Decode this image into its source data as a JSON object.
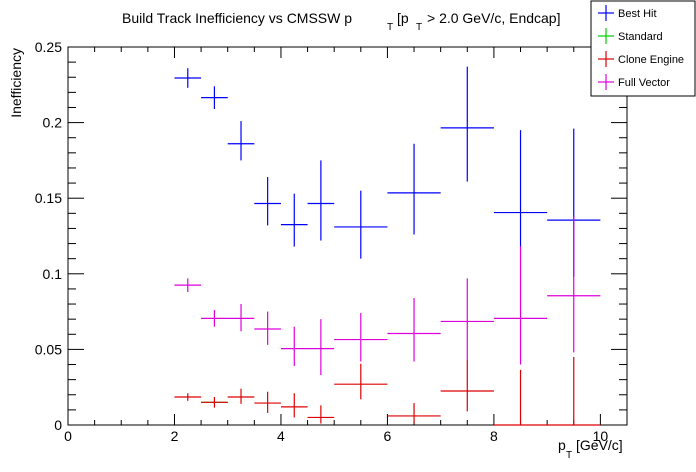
{
  "chart_data": {
    "type": "scatter",
    "title": "Build Track Inefficiency vs CMSSW p_{T} [p_{T} > 2.0 GeV/c, Endcap]",
    "title_parts": {
      "main": "Build Track Inefficiency vs CMSSW p",
      "sub1": "T",
      "bracket_open": "[p",
      "sub2": "T",
      "rest": "> 2.0 GeV/c, Endcap]"
    },
    "xlabel_parts": {
      "main": "p",
      "sub": "T",
      "unit": "[GeV/c]"
    },
    "ylabel": "Inefficiency",
    "xlim": [
      0,
      10.5
    ],
    "ylim": [
      0,
      0.25
    ],
    "x_ticks": [
      0,
      2,
      4,
      6,
      8,
      10
    ],
    "x_tick_labels": [
      "0",
      "2",
      "4",
      "6",
      "8",
      "10"
    ],
    "y_ticks": [
      0,
      0.05,
      0.1,
      0.15,
      0.2,
      0.25
    ],
    "y_tick_labels": [
      "0",
      "0.05",
      "0.1",
      "0.15",
      "0.2",
      "0.25"
    ],
    "grid": false,
    "legend_position": "top-right",
    "series": [
      {
        "name": "Best Hit",
        "color": "#0000ff",
        "points": [
          {
            "x": 2.25,
            "xerr": 0.25,
            "y": 0.2295,
            "yerr_lo": 0.0065,
            "yerr_hi": 0.0065
          },
          {
            "x": 2.75,
            "xerr": 0.25,
            "y": 0.2165,
            "yerr_lo": 0.0075,
            "yerr_hi": 0.0075
          },
          {
            "x": 3.25,
            "xerr": 0.25,
            "y": 0.186,
            "yerr_lo": 0.011,
            "yerr_hi": 0.015
          },
          {
            "x": 3.75,
            "xerr": 0.25,
            "y": 0.1465,
            "yerr_lo": 0.0145,
            "yerr_hi": 0.0175
          },
          {
            "x": 4.25,
            "xerr": 0.25,
            "y": 0.1325,
            "yerr_lo": 0.0145,
            "yerr_hi": 0.0205
          },
          {
            "x": 4.75,
            "xerr": 0.25,
            "y": 0.1465,
            "yerr_lo": 0.0245,
            "yerr_hi": 0.0285
          },
          {
            "x": 5.5,
            "xerr": 0.5,
            "y": 0.131,
            "yerr_lo": 0.021,
            "yerr_hi": 0.024
          },
          {
            "x": 6.5,
            "xerr": 0.5,
            "y": 0.1535,
            "yerr_lo": 0.0275,
            "yerr_hi": 0.0325
          },
          {
            "x": 7.5,
            "xerr": 0.5,
            "y": 0.1965,
            "yerr_lo": 0.0355,
            "yerr_hi": 0.0405
          },
          {
            "x": 8.5,
            "xerr": 0.5,
            "y": 0.1405,
            "yerr_lo": 0.0225,
            "yerr_hi": 0.0545
          },
          {
            "x": 9.5,
            "xerr": 0.5,
            "y": 0.1355,
            "yerr_lo": 0.0375,
            "yerr_hi": 0.0605
          }
        ]
      },
      {
        "name": "Standard",
        "color": "#00cc00",
        "points": [
          {
            "x": 2.75,
            "xerr": 0.25,
            "y": 0.015,
            "yerr_lo": 0.001,
            "yerr_hi": 0.001
          }
        ]
      },
      {
        "name": "Clone Engine",
        "color": "#dd0000",
        "points": [
          {
            "x": 2.25,
            "xerr": 0.25,
            "y": 0.0185,
            "yerr_lo": 0.0025,
            "yerr_hi": 0.0025
          },
          {
            "x": 2.75,
            "xerr": 0.25,
            "y": 0.015,
            "yerr_lo": 0.0035,
            "yerr_hi": 0.0035
          },
          {
            "x": 3.25,
            "xerr": 0.25,
            "y": 0.0185,
            "yerr_lo": 0.0045,
            "yerr_hi": 0.0055
          },
          {
            "x": 3.75,
            "xerr": 0.25,
            "y": 0.0145,
            "yerr_lo": 0.0065,
            "yerr_hi": 0.0075
          },
          {
            "x": 4.25,
            "xerr": 0.25,
            "y": 0.012,
            "yerr_lo": 0.007,
            "yerr_hi": 0.009
          },
          {
            "x": 4.75,
            "xerr": 0.25,
            "y": 0.005,
            "yerr_lo": 0.004,
            "yerr_hi": 0.008
          },
          {
            "x": 5.5,
            "xerr": 0.5,
            "y": 0.027,
            "yerr_lo": 0.01,
            "yerr_hi": 0.0135
          },
          {
            "x": 6.5,
            "xerr": 0.5,
            "y": 0.006,
            "yerr_lo": 0.005,
            "yerr_hi": 0.0085
          },
          {
            "x": 7.5,
            "xerr": 0.5,
            "y": 0.0225,
            "yerr_lo": 0.0135,
            "yerr_hi": 0.0205
          },
          {
            "x": 8.5,
            "xerr": 0.5,
            "y": 0.0,
            "yerr_lo": 0.0,
            "yerr_hi": 0.0365
          },
          {
            "x": 9.5,
            "xerr": 0.5,
            "y": 0.0,
            "yerr_lo": 0.0,
            "yerr_hi": 0.045
          }
        ]
      },
      {
        "name": "Full Vector",
        "color": "#dd00dd",
        "points": [
          {
            "x": 2.25,
            "xerr": 0.25,
            "y": 0.0925,
            "yerr_lo": 0.0045,
            "yerr_hi": 0.0045
          },
          {
            "x": 2.75,
            "xerr": 0.25,
            "y": 0.0705,
            "yerr_lo": 0.0055,
            "yerr_hi": 0.0055
          },
          {
            "x": 3.25,
            "xerr": 0.25,
            "y": 0.0705,
            "yerr_lo": 0.0085,
            "yerr_hi": 0.0095
          },
          {
            "x": 3.75,
            "xerr": 0.25,
            "y": 0.0635,
            "yerr_lo": 0.0105,
            "yerr_hi": 0.0115
          },
          {
            "x": 4.25,
            "xerr": 0.25,
            "y": 0.0505,
            "yerr_lo": 0.0115,
            "yerr_hi": 0.0145
          },
          {
            "x": 4.75,
            "xerr": 0.25,
            "y": 0.0505,
            "yerr_lo": 0.0175,
            "yerr_hi": 0.0195
          },
          {
            "x": 5.5,
            "xerr": 0.5,
            "y": 0.0565,
            "yerr_lo": 0.0145,
            "yerr_hi": 0.0175
          },
          {
            "x": 6.5,
            "xerr": 0.5,
            "y": 0.0605,
            "yerr_lo": 0.0185,
            "yerr_hi": 0.0235
          },
          {
            "x": 7.5,
            "xerr": 0.5,
            "y": 0.0685,
            "yerr_lo": 0.0255,
            "yerr_hi": 0.0285
          },
          {
            "x": 8.5,
            "xerr": 0.5,
            "y": 0.0705,
            "yerr_lo": 0.0305,
            "yerr_hi": 0.0475
          },
          {
            "x": 9.5,
            "xerr": 0.5,
            "y": 0.0855,
            "yerr_lo": 0.0375,
            "yerr_hi": 0.0525
          }
        ]
      }
    ]
  }
}
